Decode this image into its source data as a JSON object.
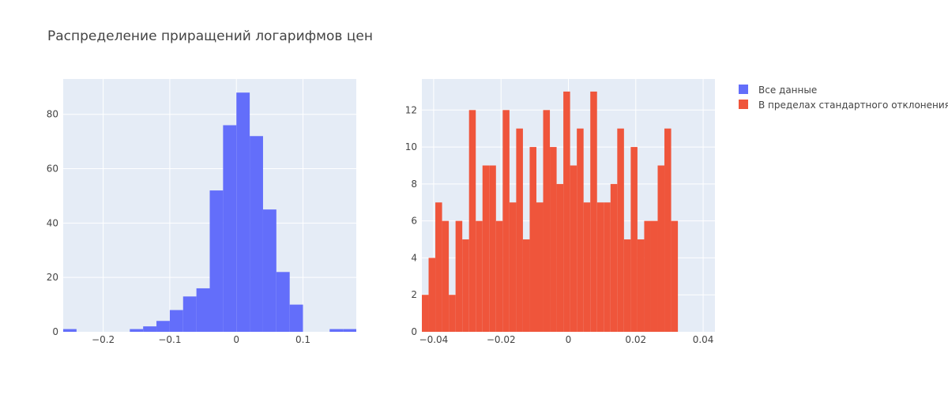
{
  "title": "Распределение приращений логарифмов цен",
  "chart_data": [
    {
      "type": "bar",
      "series_name": "Все данные",
      "color": "#636efa",
      "bins": [
        {
          "x0": -0.26,
          "x1": -0.24,
          "count": 1
        },
        {
          "x0": -0.24,
          "x1": -0.22,
          "count": 0
        },
        {
          "x0": -0.22,
          "x1": -0.2,
          "count": 0
        },
        {
          "x0": -0.2,
          "x1": -0.18,
          "count": 0
        },
        {
          "x0": -0.18,
          "x1": -0.16,
          "count": 0
        },
        {
          "x0": -0.16,
          "x1": -0.14,
          "count": 1
        },
        {
          "x0": -0.14,
          "x1": -0.12,
          "count": 2
        },
        {
          "x0": -0.12,
          "x1": -0.1,
          "count": 4
        },
        {
          "x0": -0.1,
          "x1": -0.08,
          "count": 8
        },
        {
          "x0": -0.08,
          "x1": -0.06,
          "count": 13
        },
        {
          "x0": -0.06,
          "x1": -0.04,
          "count": 16
        },
        {
          "x0": -0.04,
          "x1": -0.02,
          "count": 52
        },
        {
          "x0": -0.02,
          "x1": 0.0,
          "count": 76
        },
        {
          "x0": 0.0,
          "x1": 0.02,
          "count": 88
        },
        {
          "x0": 0.02,
          "x1": 0.04,
          "count": 72
        },
        {
          "x0": 0.04,
          "x1": 0.06,
          "count": 45
        },
        {
          "x0": 0.06,
          "x1": 0.08,
          "count": 22
        },
        {
          "x0": 0.08,
          "x1": 0.1,
          "count": 10
        },
        {
          "x0": 0.1,
          "x1": 0.12,
          "count": 0
        },
        {
          "x0": 0.12,
          "x1": 0.14,
          "count": 0
        },
        {
          "x0": 0.14,
          "x1": 0.16,
          "count": 1
        },
        {
          "x0": 0.16,
          "x1": 0.18,
          "count": 1
        }
      ],
      "xlim": [
        -0.26,
        0.18
      ],
      "ylim": [
        0,
        93
      ],
      "x_ticks": [
        -0.2,
        -0.1,
        0,
        0.1
      ],
      "x_tick_labels": [
        "−0.2",
        "−0.1",
        "0",
        "0.1"
      ],
      "y_ticks": [
        0,
        20,
        40,
        60,
        80
      ],
      "y_tick_labels": [
        "0",
        "20",
        "40",
        "60",
        "80"
      ],
      "grid": true
    },
    {
      "type": "bar",
      "series_name": "В пределах стандартного отклонения",
      "color": "#ef553b",
      "bin_start": -0.0435,
      "bin_width": 0.002,
      "counts": [
        2,
        4,
        7,
        6,
        2,
        6,
        5,
        12,
        6,
        9,
        9,
        6,
        12,
        7,
        11,
        5,
        10,
        7,
        12,
        10,
        8,
        13,
        9,
        11,
        7,
        13,
        7,
        7,
        8,
        11,
        5,
        10,
        5,
        6,
        6,
        9,
        11,
        6
      ],
      "xlim": [
        -0.0435,
        0.0435
      ],
      "ylim": [
        0,
        13.68
      ],
      "x_ticks": [
        -0.04,
        -0.02,
        0,
        0.02,
        0.04
      ],
      "x_tick_labels": [
        "−0.04",
        "−0.02",
        "0",
        "0.02",
        "0.04"
      ],
      "y_ticks": [
        0,
        2,
        4,
        6,
        8,
        10,
        12
      ],
      "y_tick_labels": [
        "0",
        "2",
        "4",
        "6",
        "8",
        "10",
        "12"
      ],
      "grid": true
    }
  ],
  "legend": {
    "placement": "top-right",
    "items": [
      {
        "label": "Все данные",
        "color": "#636efa"
      },
      {
        "label": "В пределах стандартного отклонения",
        "color": "#ef553b"
      }
    ]
  }
}
